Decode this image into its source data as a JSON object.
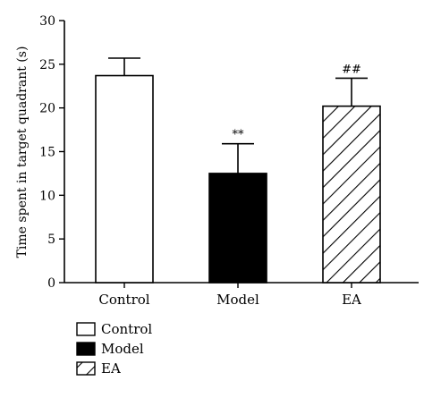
{
  "chart_data": {
    "type": "bar",
    "title": "",
    "xlabel": "",
    "ylabel": "Time spent in target quadrant (s)",
    "ylim": [
      0,
      30
    ],
    "yticks": [
      0,
      5,
      10,
      15,
      20,
      25,
      30
    ],
    "categories": [
      "Control",
      "Model",
      "EA"
    ],
    "values": [
      23.7,
      12.5,
      20.2
    ],
    "errors": [
      2.0,
      3.4,
      3.2
    ],
    "annotations": [
      "",
      "**",
      "##"
    ],
    "fills": [
      "white",
      "black",
      "hatched"
    ],
    "grid": false,
    "legend": {
      "placement": "bottom-left",
      "entries": [
        "Control",
        "Model",
        "EA"
      ]
    }
  }
}
